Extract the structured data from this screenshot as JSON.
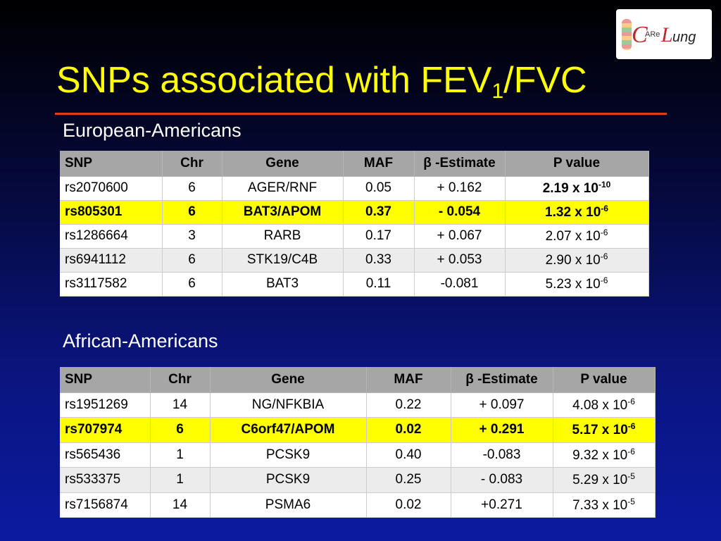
{
  "title": {
    "main": "SNPs associated with FEV",
    "subscript": "1",
    "suffix": "/FVC"
  },
  "logo": {
    "c": "C",
    "are": "ARe",
    "l": "L",
    "ung": "ung"
  },
  "tables": [
    {
      "label": "European-Americans",
      "header": [
        "SNP",
        "Chr",
        "Gene",
        "MAF",
        "β -Estimate",
        "P value"
      ],
      "highlight_row": 1,
      "bold_cells": [
        [
          0,
          5
        ]
      ],
      "rows": [
        [
          "rs2070600",
          "6",
          "AGER/RNF",
          "0.05",
          "+ 0.162",
          {
            "base": "2.19 x 10",
            "exp": "-10"
          }
        ],
        [
          "rs805301",
          "6",
          "BAT3/APOM",
          "0.37",
          "- 0.054",
          {
            "base": "1.32 x 10",
            "exp": "-6"
          }
        ],
        [
          "rs1286664",
          "3",
          "RARB",
          "0.17",
          "+ 0.067",
          {
            "base": "2.07 x 10",
            "exp": "-6"
          }
        ],
        [
          "rs6941112",
          "6",
          "STK19/C4B",
          "0.33",
          "+ 0.053",
          {
            "base": "2.90 x 10",
            "exp": "-6"
          }
        ],
        [
          "rs3117582",
          "6",
          "BAT3",
          "0.11",
          "-0.081",
          {
            "base": "5.23 x 10",
            "exp": "-6"
          }
        ]
      ]
    },
    {
      "label": "African-Americans",
      "header": [
        "SNP",
        "Chr",
        "Gene",
        "MAF",
        "β -Estimate",
        "P value"
      ],
      "highlight_row": 1,
      "bold_cells": [],
      "rows": [
        [
          "rs1951269",
          "14",
          "NG/NFKBIA",
          "0.22",
          "+ 0.097",
          {
            "base": "4.08 x 10",
            "exp": "-6"
          }
        ],
        [
          "rs707974",
          "6",
          "C6orf47/APOM",
          "0.02",
          "+ 0.291",
          {
            "base": "5.17 x 10",
            "exp": "-6"
          }
        ],
        [
          "rs565436",
          "1",
          "PCSK9",
          "0.40",
          "-0.083",
          {
            "base": "9.32 x 10",
            "exp": "-6"
          }
        ],
        [
          "rs533375",
          "1",
          "PCSK9",
          "0.25",
          "- 0.083",
          {
            "base": "5.29 x 10",
            "exp": "-5"
          }
        ],
        [
          "rs7156874",
          "14",
          "PSMA6",
          "0.02",
          "+0.271",
          {
            "base": "7.33 x 10",
            "exp": "-5"
          }
        ]
      ]
    }
  ]
}
